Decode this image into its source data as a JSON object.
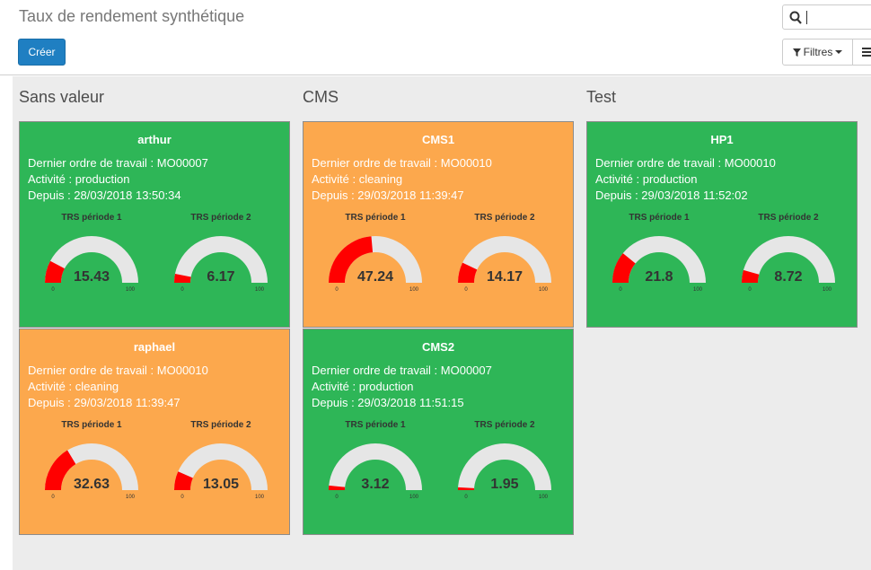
{
  "header": {
    "title": "Taux de rendement synthétique",
    "create_label": "Créer",
    "filters_label": "Filtres"
  },
  "gauge_labels": {
    "p1": "TRS période 1",
    "p2": "TRS période 2",
    "min": "0",
    "max": "100"
  },
  "columns": [
    {
      "title": "Sans valeur",
      "cards": [
        {
          "name": "arthur",
          "status": "production",
          "color": "#2eb657",
          "order": "Dernier ordre de travail : MO00007",
          "activity": "Activité : production",
          "since": "Depuis : 28/03/2018 13:50:34",
          "trs1": "15.43",
          "trs2": "6.17"
        },
        {
          "name": "raphael",
          "status": "cleaning",
          "color": "#fca84d",
          "order": "Dernier ordre de travail : MO00010",
          "activity": "Activité : cleaning",
          "since": "Depuis : 29/03/2018 11:39:47",
          "trs1": "32.63",
          "trs2": "13.05"
        }
      ]
    },
    {
      "title": "CMS",
      "cards": [
        {
          "name": "CMS1",
          "status": "cleaning",
          "color": "#fca84d",
          "order": "Dernier ordre de travail : MO00010",
          "activity": "Activité : cleaning",
          "since": "Depuis : 29/03/2018 11:39:47",
          "trs1": "47.24",
          "trs2": "14.17"
        },
        {
          "name": "CMS2",
          "status": "production",
          "color": "#2eb657",
          "order": "Dernier ordre de travail : MO00007",
          "activity": "Activité : production",
          "since": "Depuis : 29/03/2018 11:51:15",
          "trs1": "3.12",
          "trs2": "1.95"
        }
      ]
    },
    {
      "title": "Test",
      "cards": [
        {
          "name": "HP1",
          "status": "production",
          "color": "#2eb657",
          "order": "Dernier ordre de travail : MO00010",
          "activity": "Activité : production",
          "since": "Depuis : 29/03/2018 11:52:02",
          "trs1": "21.8",
          "trs2": "8.72"
        }
      ]
    }
  ],
  "colors": {
    "gauge_fill": "#ff0000",
    "gauge_track": "#e6e6e6",
    "accent": "#1f7fc2"
  }
}
